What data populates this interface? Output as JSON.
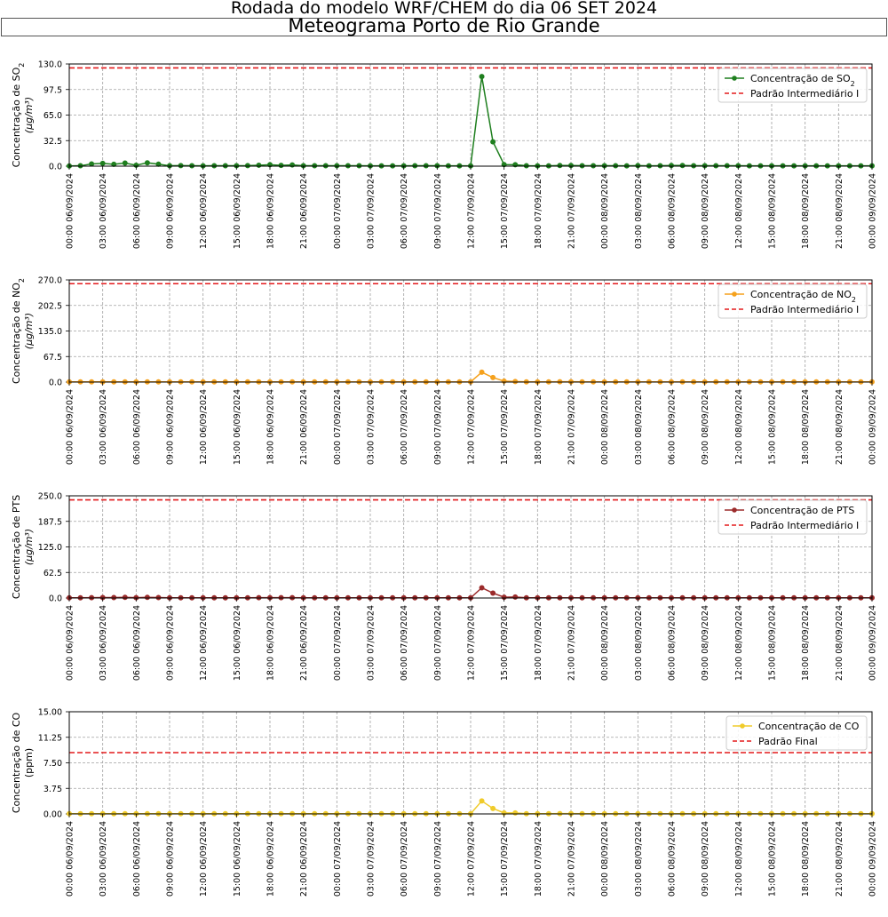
{
  "suptitle": "Rodada do modelo WRF/CHEM do dia 06 SET 2024",
  "title": "Meteograma Porto de Rio Grande",
  "x_tick_labels": [
    "00:00 06/09/2024",
    "03:00 06/09/2024",
    "06:00 06/09/2024",
    "09:00 06/09/2024",
    "12:00 06/09/2024",
    "15:00 06/09/2024",
    "18:00 06/09/2024",
    "21:00 06/09/2024",
    "00:00 07/09/2024",
    "03:00 07/09/2024",
    "06:00 07/09/2024",
    "09:00 07/09/2024",
    "12:00 07/09/2024",
    "15:00 07/09/2024",
    "18:00 07/09/2024",
    "21:00 07/09/2024",
    "00:00 08/09/2024",
    "03:00 08/09/2024",
    "06:00 08/09/2024",
    "09:00 08/09/2024",
    "12:00 08/09/2024",
    "15:00 08/09/2024",
    "18:00 08/09/2024",
    "21:00 08/09/2024",
    "00:00 09/09/2024"
  ],
  "chart_data": [
    {
      "type": "line",
      "ylabel_line1": "Concentração de SO",
      "ylabel_sub": "2",
      "ylabel_unit": "(μg/m³)",
      "yticks": [
        "0.0",
        "32.5",
        "65.0",
        "97.5",
        "130.0"
      ],
      "ylim": [
        0,
        130
      ],
      "xlim": [
        0,
        72
      ],
      "grid": true,
      "legend_loc": "upper right",
      "series": [
        {
          "name": "Concentração de SO",
          "name_sub": "2",
          "color": "#1f7f1f",
          "x": [
            0,
            1,
            2,
            3,
            4,
            5,
            6,
            7,
            8,
            9,
            10,
            11,
            12,
            13,
            14,
            15,
            16,
            17,
            18,
            19,
            20,
            21,
            22,
            23,
            24,
            25,
            26,
            27,
            28,
            29,
            30,
            31,
            32,
            33,
            34,
            35,
            36,
            37,
            38,
            39,
            40,
            41,
            42,
            43,
            44,
            45,
            46,
            47,
            48,
            49,
            50,
            51,
            52,
            53,
            54,
            55,
            56,
            57,
            58,
            59,
            60,
            61,
            62,
            63,
            64,
            65,
            66,
            67,
            68,
            69,
            70,
            71,
            72
          ],
          "values": [
            0.3,
            0.5,
            2.8,
            3.6,
            2.4,
            4.0,
            1.2,
            4.3,
            2.5,
            0.5,
            0.7,
            0.5,
            0.4,
            0.5,
            0.6,
            0.6,
            0.7,
            1.2,
            1.8,
            1.0,
            1.5,
            0.6,
            0.5,
            0.5,
            0.5,
            0.5,
            0.5,
            0.4,
            0.4,
            0.4,
            0.4,
            0.5,
            0.5,
            0.5,
            0.4,
            0.4,
            0.4,
            114.0,
            31.0,
            2.0,
            1.8,
            0.5,
            0.4,
            0.4,
            0.8,
            0.9,
            0.5,
            0.6,
            0.5,
            0.6,
            0.4,
            0.7,
            0.4,
            0.5,
            0.8,
            0.8,
            0.5,
            0.5,
            0.5,
            0.5,
            0.5,
            0.4,
            0.4,
            0.4,
            0.4,
            0.4,
            0.4,
            0.4,
            0.4,
            0.4,
            0.4,
            0.4,
            0.4
          ]
        }
      ],
      "reference": {
        "name": "Padrão Intermediário I",
        "value": 125,
        "color": "#e41a1c"
      }
    },
    {
      "type": "line",
      "ylabel_line1": "Concentração de NO",
      "ylabel_sub": "2",
      "ylabel_unit": "(μg/m³)",
      "yticks": [
        "0.0",
        "67.5",
        "135.0",
        "202.5",
        "270.0"
      ],
      "ylim": [
        0,
        270
      ],
      "xlim": [
        0,
        72
      ],
      "grid": true,
      "legend_loc": "upper right",
      "series": [
        {
          "name": "Concentração de NO",
          "name_sub": "2",
          "color": "#f5a11d",
          "x": [
            0,
            1,
            2,
            3,
            4,
            5,
            6,
            7,
            8,
            9,
            10,
            11,
            12,
            13,
            14,
            15,
            16,
            17,
            18,
            19,
            20,
            21,
            22,
            23,
            24,
            25,
            26,
            27,
            28,
            29,
            30,
            31,
            32,
            33,
            34,
            35,
            36,
            37,
            38,
            39,
            40,
            41,
            42,
            43,
            44,
            45,
            46,
            47,
            48,
            49,
            50,
            51,
            52,
            53,
            54,
            55,
            56,
            57,
            58,
            59,
            60,
            61,
            62,
            63,
            64,
            65,
            66,
            67,
            68,
            69,
            70,
            71,
            72
          ],
          "values": [
            0.5,
            0.5,
            0.5,
            0.6,
            0.6,
            0.7,
            0.6,
            0.7,
            0.7,
            0.6,
            0.6,
            0.6,
            0.6,
            0.6,
            0.6,
            0.6,
            0.6,
            0.6,
            0.6,
            0.6,
            0.6,
            0.6,
            0.6,
            0.6,
            0.6,
            0.6,
            0.6,
            0.6,
            0.6,
            0.6,
            0.6,
            0.6,
            0.6,
            0.6,
            0.6,
            0.6,
            0.6,
            26.0,
            12.0,
            2.5,
            1.5,
            0.6,
            0.6,
            0.6,
            0.8,
            0.8,
            0.6,
            0.6,
            0.6,
            0.6,
            0.6,
            0.6,
            0.6,
            0.6,
            0.6,
            0.6,
            0.6,
            0.6,
            0.6,
            0.6,
            0.6,
            0.6,
            0.6,
            0.6,
            0.6,
            0.6,
            0.6,
            0.6,
            0.6,
            0.6,
            0.6,
            0.6,
            0.6
          ]
        }
      ],
      "reference": {
        "name": "Padrão Intermediário I",
        "value": 260,
        "color": "#e41a1c"
      }
    },
    {
      "type": "line",
      "ylabel_line1": "Concentração de PTS",
      "ylabel_sub": "",
      "ylabel_unit": "(μg/m³)",
      "yticks": [
        "0.0",
        "62.5",
        "125.0",
        "187.5",
        "250.0"
      ],
      "ylim": [
        0,
        250
      ],
      "xlim": [
        0,
        72
      ],
      "grid": true,
      "legend_loc": "upper right",
      "series": [
        {
          "name": "Concentração de PTS",
          "name_sub": "",
          "color": "#9b2b2b",
          "x": [
            0,
            1,
            2,
            3,
            4,
            5,
            6,
            7,
            8,
            9,
            10,
            11,
            12,
            13,
            14,
            15,
            16,
            17,
            18,
            19,
            20,
            21,
            22,
            23,
            24,
            25,
            26,
            27,
            28,
            29,
            30,
            31,
            32,
            33,
            34,
            35,
            36,
            37,
            38,
            39,
            40,
            41,
            42,
            43,
            44,
            45,
            46,
            47,
            48,
            49,
            50,
            51,
            52,
            53,
            54,
            55,
            56,
            57,
            58,
            59,
            60,
            61,
            62,
            63,
            64,
            65,
            66,
            67,
            68,
            69,
            70,
            71,
            72
          ],
          "values": [
            0.5,
            0.6,
            0.8,
            1.2,
            1.0,
            1.6,
            0.8,
            1.7,
            1.2,
            0.6,
            0.6,
            0.6,
            0.5,
            0.5,
            0.6,
            0.5,
            0.6,
            0.7,
            0.9,
            0.7,
            0.8,
            0.5,
            0.5,
            0.5,
            0.5,
            0.5,
            0.5,
            0.5,
            0.5,
            0.5,
            0.5,
            0.5,
            0.5,
            0.5,
            0.5,
            0.5,
            0.5,
            25.0,
            12.0,
            2.0,
            2.5,
            0.5,
            0.5,
            0.5,
            0.6,
            0.6,
            0.5,
            0.5,
            0.5,
            0.5,
            0.5,
            0.5,
            0.5,
            0.5,
            0.6,
            0.6,
            0.5,
            0.5,
            0.5,
            0.5,
            0.5,
            0.5,
            0.5,
            0.5,
            0.5,
            0.5,
            0.5,
            0.5,
            0.5,
            0.5,
            0.5,
            0.5,
            0.5
          ]
        }
      ],
      "reference": {
        "name": "Padrão Intermediário I",
        "value": 240,
        "color": "#e41a1c"
      }
    },
    {
      "type": "line",
      "ylabel_line1": "Concentração de CO",
      "ylabel_sub": "",
      "ylabel_unit": "(ppm)",
      "yticks": [
        "0.00",
        "3.75",
        "7.50",
        "11.25",
        "15.00"
      ],
      "ylim": [
        0,
        15
      ],
      "xlim": [
        0,
        72
      ],
      "grid": true,
      "legend_loc": "upper right",
      "series": [
        {
          "name": "Concentração de CO",
          "name_sub": "",
          "color": "#f0cb2a",
          "x": [
            0,
            1,
            2,
            3,
            4,
            5,
            6,
            7,
            8,
            9,
            10,
            11,
            12,
            13,
            14,
            15,
            16,
            17,
            18,
            19,
            20,
            21,
            22,
            23,
            24,
            25,
            26,
            27,
            28,
            29,
            30,
            31,
            32,
            33,
            34,
            35,
            36,
            37,
            38,
            39,
            40,
            41,
            42,
            43,
            44,
            45,
            46,
            47,
            48,
            49,
            50,
            51,
            52,
            53,
            54,
            55,
            56,
            57,
            58,
            59,
            60,
            61,
            62,
            63,
            64,
            65,
            66,
            67,
            68,
            69,
            70,
            71,
            72
          ],
          "values": [
            0.03,
            0.03,
            0.03,
            0.03,
            0.03,
            0.03,
            0.03,
            0.03,
            0.03,
            0.03,
            0.03,
            0.03,
            0.03,
            0.03,
            0.03,
            0.03,
            0.03,
            0.03,
            0.03,
            0.03,
            0.03,
            0.03,
            0.03,
            0.03,
            0.03,
            0.03,
            0.03,
            0.03,
            0.03,
            0.03,
            0.03,
            0.03,
            0.03,
            0.03,
            0.03,
            0.03,
            0.03,
            1.9,
            0.8,
            0.15,
            0.15,
            0.03,
            0.03,
            0.03,
            0.05,
            0.05,
            0.03,
            0.03,
            0.03,
            0.03,
            0.03,
            0.03,
            0.03,
            0.03,
            0.03,
            0.03,
            0.03,
            0.03,
            0.03,
            0.03,
            0.03,
            0.03,
            0.03,
            0.03,
            0.03,
            0.03,
            0.03,
            0.03,
            0.03,
            0.03,
            0.03,
            0.03,
            0.03
          ]
        }
      ],
      "reference": {
        "name": "Padrão Final",
        "value": 9,
        "color": "#e41a1c"
      }
    }
  ]
}
